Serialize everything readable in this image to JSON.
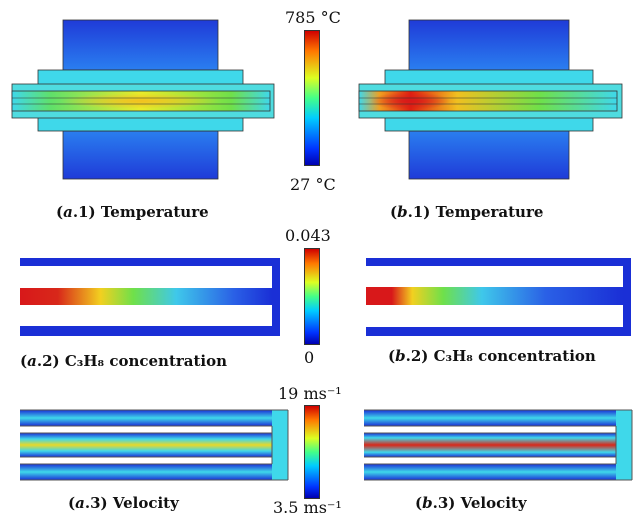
{
  "colorbars": {
    "temperature": {
      "max": "785 °C",
      "min": "27 °C"
    },
    "concentration": {
      "max": "0.043",
      "min": "0"
    },
    "velocity": {
      "max": "19 ms⁻¹",
      "min": "3.5 ms⁻¹"
    }
  },
  "captions": {
    "a1": {
      "tag": "a",
      "num": "1",
      "text": "Temperature"
    },
    "b1": {
      "tag": "b",
      "num": "1",
      "text": "Temperature"
    },
    "a2": {
      "tag": "a",
      "num": "2",
      "text": "C₃H₈ concentration"
    },
    "b2": {
      "tag": "b",
      "num": "2",
      "text": "C₃H₈ concentration"
    },
    "a3": {
      "tag": "a",
      "num": "3",
      "text": "Velocity"
    },
    "b3": {
      "tag": "b",
      "num": "3",
      "text": "Velocity"
    }
  },
  "colors": {
    "blue": "#1a2fd6",
    "cyan": "#3fd8ea",
    "green": "#6fe04a",
    "yellow": "#f2ec2a",
    "red": "#d8181a"
  }
}
